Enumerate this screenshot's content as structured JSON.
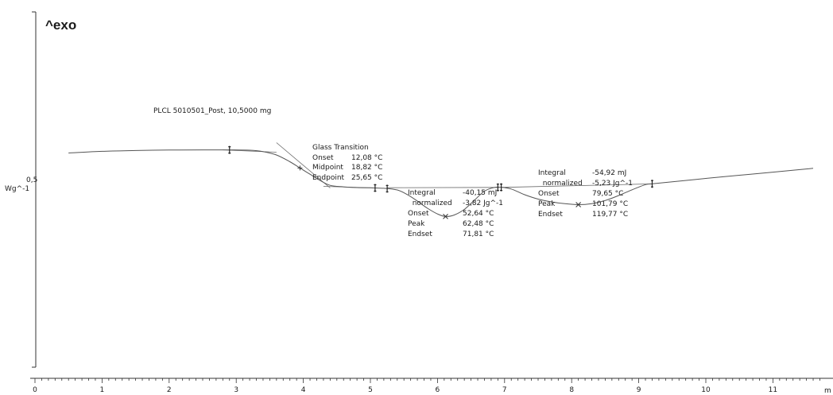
{
  "chart_data": {
    "type": "line",
    "exo_label": "^exo",
    "sample_label": "PLCL 5010501_Post, 10,5000 mg",
    "y_scale_value": "0,5",
    "y_scale_unit": "Wg^-1",
    "x_unit_partial": "m",
    "xlim": [
      0,
      11.7
    ],
    "x_ticks": [
      "0",
      "1",
      "2",
      "3",
      "4",
      "5",
      "6",
      "7",
      "8",
      "9",
      "10",
      "11"
    ],
    "series": [
      {
        "x": [
          0.5,
          1.0,
          1.5,
          2.0,
          2.5,
          2.9,
          3.2,
          3.4,
          3.6,
          3.8,
          3.95,
          4.1,
          4.25,
          4.4,
          4.6,
          4.8,
          5.0,
          5.2,
          5.4,
          5.55,
          5.7,
          5.85,
          6.0,
          6.12,
          6.25,
          6.4,
          6.55,
          6.7,
          6.85,
          6.95,
          7.1,
          7.3,
          7.5,
          7.7,
          7.9,
          8.1,
          8.3,
          8.5,
          8.7,
          8.9,
          9.1,
          9.2,
          9.5,
          10.0,
          10.5,
          11.0,
          11.6
        ],
        "y": [
          3.75,
          3.96,
          4.06,
          4.12,
          4.14,
          4.14,
          4.1,
          3.93,
          3.5,
          2.65,
          1.86,
          1.08,
          0.3,
          -0.32,
          -0.51,
          -0.6,
          -0.63,
          -0.69,
          -0.9,
          -1.48,
          -2.3,
          -3.2,
          -3.92,
          -4.24,
          -4.05,
          -3.35,
          -2.2,
          -1.05,
          -0.58,
          -0.56,
          -0.78,
          -1.5,
          -2.05,
          -2.4,
          -2.63,
          -2.75,
          -2.62,
          -2.23,
          -1.6,
          -0.88,
          -0.23,
          -0.12,
          0.13,
          0.55,
          0.95,
          1.34,
          1.82
        ]
      }
    ],
    "annotations": [
      {
        "title": "Glass Transition",
        "rows": [
          {
            "label": "Onset",
            "value": "12,08 °C"
          },
          {
            "label": "Midpoint",
            "value": "18,82 °C"
          },
          {
            "label": "Endpoint",
            "value": "25,65 °C"
          }
        ]
      },
      {
        "rows": [
          {
            "label": "Integral",
            "value": "-40,15 mJ"
          },
          {
            "label": "  normalized",
            "value": "-3,82 Jg^-1"
          },
          {
            "label": "Onset",
            "value": "52,64 °C"
          },
          {
            "label": "Peak",
            "value": "62,48 °C"
          },
          {
            "label": "Endset",
            "value": "71,81 °C"
          }
        ]
      },
      {
        "rows": [
          {
            "label": "Integral",
            "value": "-54,92 mJ"
          },
          {
            "label": "  normalized",
            "value": "-5,23 Jg^-1"
          },
          {
            "label": "Onset",
            "value": "79,65 °C"
          },
          {
            "label": "Peak",
            "value": "101,79 °C"
          },
          {
            "label": "Endset",
            "value": "119,77 °C"
          }
        ]
      }
    ],
    "markers": [
      {
        "type": "flag",
        "x": 2.9
      },
      {
        "type": "cross",
        "x": 3.95
      },
      {
        "type": "flag",
        "x": 5.07
      },
      {
        "type": "flag",
        "x": 5.25
      },
      {
        "type": "flag",
        "x": 6.9
      },
      {
        "type": "flag",
        "x": 6.95
      },
      {
        "type": "flag",
        "x": 9.2
      },
      {
        "type": "x",
        "x": 6.12
      },
      {
        "type": "x",
        "x": 8.1
      }
    ]
  }
}
